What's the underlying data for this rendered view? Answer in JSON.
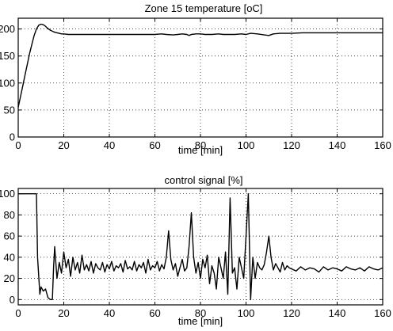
{
  "chart_data": [
    {
      "type": "line",
      "title": "Zone 15 temperature [oC]",
      "xlabel": "time [min]",
      "ylabel": "",
      "xlim": [
        0,
        160
      ],
      "ylim": [
        0,
        220
      ],
      "grid": true,
      "x_ticks": [
        "0",
        "20",
        "40",
        "60",
        "80",
        "100",
        "120",
        "140",
        "160"
      ],
      "y_ticks": [
        "0",
        "50",
        "100",
        "150",
        "200"
      ],
      "series": [
        {
          "x": [
            0,
            1,
            2,
            3,
            4,
            5,
            6,
            7,
            8,
            9,
            10,
            11,
            12,
            13,
            14,
            15,
            16,
            17,
            18,
            19,
            20,
            22,
            25,
            30,
            35,
            40,
            45,
            50,
            55,
            60,
            63,
            65,
            68,
            70,
            72,
            74,
            75,
            76,
            78,
            80,
            82,
            85,
            88,
            90,
            92,
            95,
            98,
            100,
            102,
            105,
            108,
            110,
            112,
            115,
            120,
            125,
            130,
            140,
            150,
            160
          ],
          "y": [
            55,
            75,
            95,
            115,
            135,
            155,
            172,
            188,
            200,
            207,
            209,
            208,
            205,
            201,
            198,
            196,
            194,
            193,
            192,
            191,
            191,
            190,
            190,
            190,
            190,
            190,
            190,
            190,
            190,
            190,
            191,
            190,
            189,
            190,
            191,
            190,
            188,
            190,
            191,
            191,
            190,
            190,
            191,
            190,
            190,
            190,
            191,
            190,
            192,
            191,
            189,
            188,
            191,
            192,
            192,
            193,
            193,
            193,
            193,
            193
          ]
        }
      ]
    },
    {
      "type": "line",
      "title": "control signal [%]",
      "xlabel": "time [min]",
      "ylabel": "",
      "xlim": [
        0,
        160
      ],
      "ylim": [
        -5,
        105
      ],
      "grid": true,
      "x_ticks": [
        "0",
        "20",
        "40",
        "60",
        "80",
        "100",
        "120",
        "140",
        "160"
      ],
      "y_ticks": [
        "0",
        "20",
        "40",
        "60",
        "80",
        "100"
      ],
      "series": [
        {
          "x": [
            0,
            8,
            8.5,
            9.5,
            10,
            11,
            12,
            13,
            14,
            15,
            15.5,
            16,
            17,
            18,
            19,
            20,
            21,
            22,
            23,
            24,
            25,
            26,
            27,
            28,
            29,
            30,
            31,
            32,
            33,
            34,
            35,
            36,
            37,
            38,
            39,
            40,
            41,
            42,
            43,
            44,
            45,
            46,
            47,
            48,
            49,
            50,
            51,
            52,
            53,
            54,
            55,
            56,
            57,
            58,
            59,
            60,
            61,
            62,
            63,
            64,
            65,
            66,
            67,
            68,
            69,
            70,
            71,
            72,
            73,
            74,
            75,
            76,
            77,
            78,
            79,
            80,
            81,
            82,
            83,
            84,
            85,
            86,
            87,
            88,
            89,
            90,
            91,
            92,
            93,
            94,
            95,
            96,
            97,
            98,
            99,
            100,
            101,
            102,
            103,
            104,
            105,
            106,
            107,
            108,
            109,
            110,
            111,
            112,
            113,
            114,
            115,
            116,
            117,
            118,
            119,
            120,
            122,
            124,
            126,
            128,
            130,
            132,
            134,
            136,
            138,
            140,
            142,
            144,
            146,
            148,
            150,
            152,
            154,
            156,
            158,
            160
          ],
          "y": [
            100,
            100,
            40,
            5,
            12,
            8,
            10,
            2,
            0,
            0,
            30,
            50,
            20,
            35,
            25,
            45,
            30,
            38,
            22,
            40,
            28,
            35,
            25,
            42,
            28,
            33,
            27,
            36,
            25,
            34,
            30,
            28,
            35,
            26,
            33,
            29,
            36,
            27,
            32,
            30,
            34,
            26,
            37,
            29,
            31,
            28,
            36,
            27,
            33,
            30,
            35,
            25,
            38,
            28,
            32,
            30,
            36,
            27,
            33,
            29,
            40,
            65,
            38,
            28,
            34,
            22,
            30,
            38,
            27,
            30,
            50,
            82,
            40,
            25,
            35,
            20,
            38,
            30,
            42,
            15,
            32,
            25,
            10,
            40,
            30,
            20,
            45,
            5,
            96,
            25,
            30,
            10,
            40,
            30,
            20,
            60,
            100,
            0,
            40,
            20,
            35,
            30,
            28,
            33,
            45,
            60,
            40,
            28,
            34,
            30,
            26,
            35,
            28,
            32,
            30,
            29,
            27,
            31,
            28,
            30,
            29,
            26,
            31,
            28,
            30,
            29,
            27,
            31,
            29,
            28,
            30,
            27,
            31,
            29,
            28,
            30
          ]
        }
      ]
    }
  ]
}
